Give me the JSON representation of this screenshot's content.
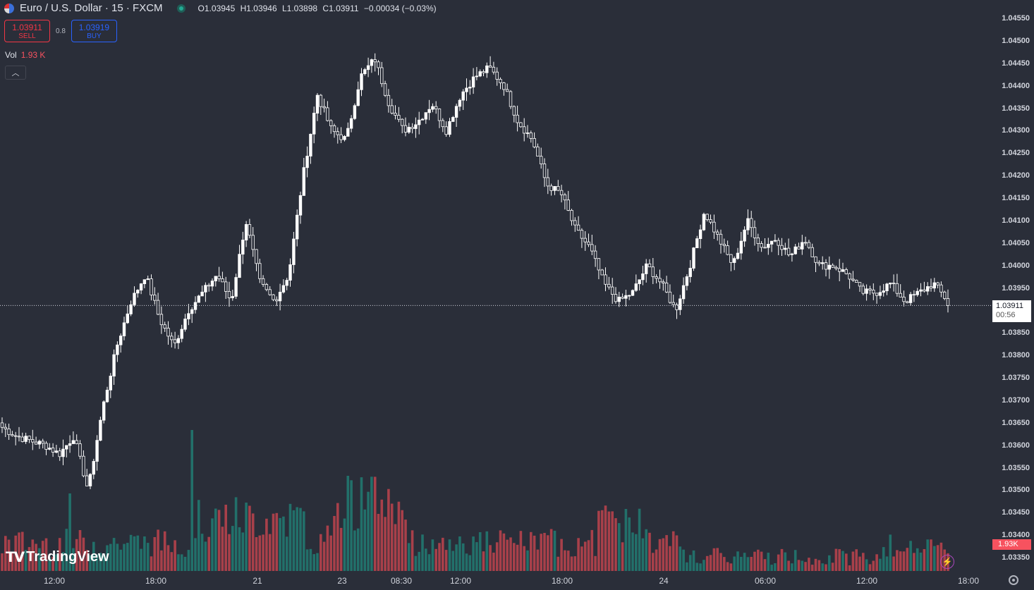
{
  "header": {
    "symbol_title": "Euro / U.S. Dollar · 15 · FXCM",
    "ohlc": {
      "open": "O1.03945",
      "high": "H1.03946",
      "low": "L1.03898",
      "close": "C1.03911",
      "change": "−0.00034 (−0.03%)"
    }
  },
  "trade": {
    "sell_price": "1.03911",
    "sell_label": "SELL",
    "spread": "0.8",
    "buy_price": "1.03919",
    "buy_label": "BUY"
  },
  "volume_legend": {
    "label": "Vol",
    "value": "1.93 K"
  },
  "last_price": {
    "price": "1.03911",
    "countdown": "00:56"
  },
  "last_volume": "1.93K",
  "brand": "TradingView",
  "colors": {
    "up_candle": "#ffffff",
    "vol_up": "#22706a",
    "vol_down": "#a8404a",
    "background": "#2a2e39"
  },
  "icons": [
    "flag-icon",
    "market-open-icon",
    "chevron-up-icon",
    "flash-icon",
    "settings-icon"
  ],
  "chart_data": {
    "type": "candlestick",
    "title": "Euro / U.S. Dollar · 15 · FXCM",
    "price_ticks": [
      "1.04550",
      "1.04500",
      "1.04450",
      "1.04400",
      "1.04350",
      "1.04300",
      "1.04250",
      "1.04200",
      "1.04150",
      "1.04100",
      "1.04050",
      "1.04000",
      "1.03950",
      "1.03900",
      "1.03850",
      "1.03800",
      "1.03750",
      "1.03700",
      "1.03650",
      "1.03600",
      "1.03550",
      "1.03500",
      "1.03450",
      "1.03400",
      "1.03350"
    ],
    "time_ticks": [
      "12:00",
      "18:00",
      "21",
      "23",
      "08:30",
      "12:00",
      "18:00",
      "24",
      "06:00",
      "12:00",
      "18:00"
    ],
    "close_path": [
      1.0364,
      1.0362,
      1.0361,
      1.036,
      1.0358,
      1.0362,
      1.035,
      1.0368,
      1.0382,
      1.0392,
      1.0398,
      1.0388,
      1.0382,
      1.039,
      1.0394,
      1.0398,
      1.0392,
      1.041,
      1.0396,
      1.0392,
      1.0398,
      1.042,
      1.0438,
      1.043,
      1.0428,
      1.0442,
      1.0446,
      1.0436,
      1.043,
      1.0432,
      1.0436,
      1.043,
      1.0438,
      1.0442,
      1.0444,
      1.044,
      1.0432,
      1.0428,
      1.0418,
      1.0416,
      1.0408,
      1.0404,
      1.0396,
      1.0392,
      1.0394,
      1.04,
      1.0396,
      1.039,
      1.04,
      1.0412,
      1.0406,
      1.04,
      1.041,
      1.0404,
      1.0406,
      1.0402,
      1.0406,
      1.04,
      1.04,
      1.0398,
      1.0394,
      1.0394,
      1.0396,
      1.0392,
      1.0394,
      1.0396,
      1.0392
    ],
    "volume_max_label": "1.93K",
    "ylim": [
      1.0332,
      1.0459
    ]
  }
}
